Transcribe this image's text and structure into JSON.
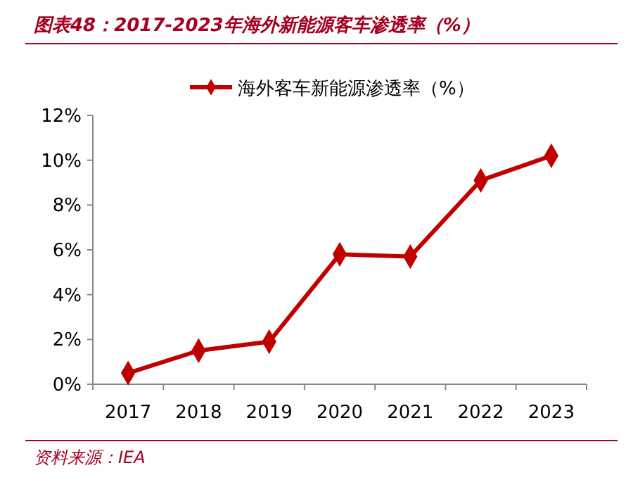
{
  "chart_data": {
    "type": "line",
    "title": "图表48：2017-2023年海外新能源客车渗透率（%）",
    "annotations": [
      "资料来源：IEA"
    ],
    "categories": [
      "2017",
      "2018",
      "2019",
      "2020",
      "2021",
      "2022",
      "2023"
    ],
    "series": [
      {
        "name": "海外客车新能源渗透率（%）",
        "color": "#c00000",
        "values": [
          0.5,
          1.5,
          1.9,
          5.8,
          5.7,
          9.1,
          10.2
        ]
      }
    ],
    "ylim": [
      0,
      12
    ],
    "yticks": [
      {
        "value": 0,
        "label": "0%"
      },
      {
        "value": 2,
        "label": "2%"
      },
      {
        "value": 4,
        "label": "4%"
      },
      {
        "value": 6,
        "label": "6%"
      },
      {
        "value": 8,
        "label": "8%"
      },
      {
        "value": 10,
        "label": "10%"
      },
      {
        "value": 12,
        "label": "12%"
      }
    ],
    "grid": false,
    "legend": "top",
    "marker": "diamond",
    "line_style": "solid"
  }
}
